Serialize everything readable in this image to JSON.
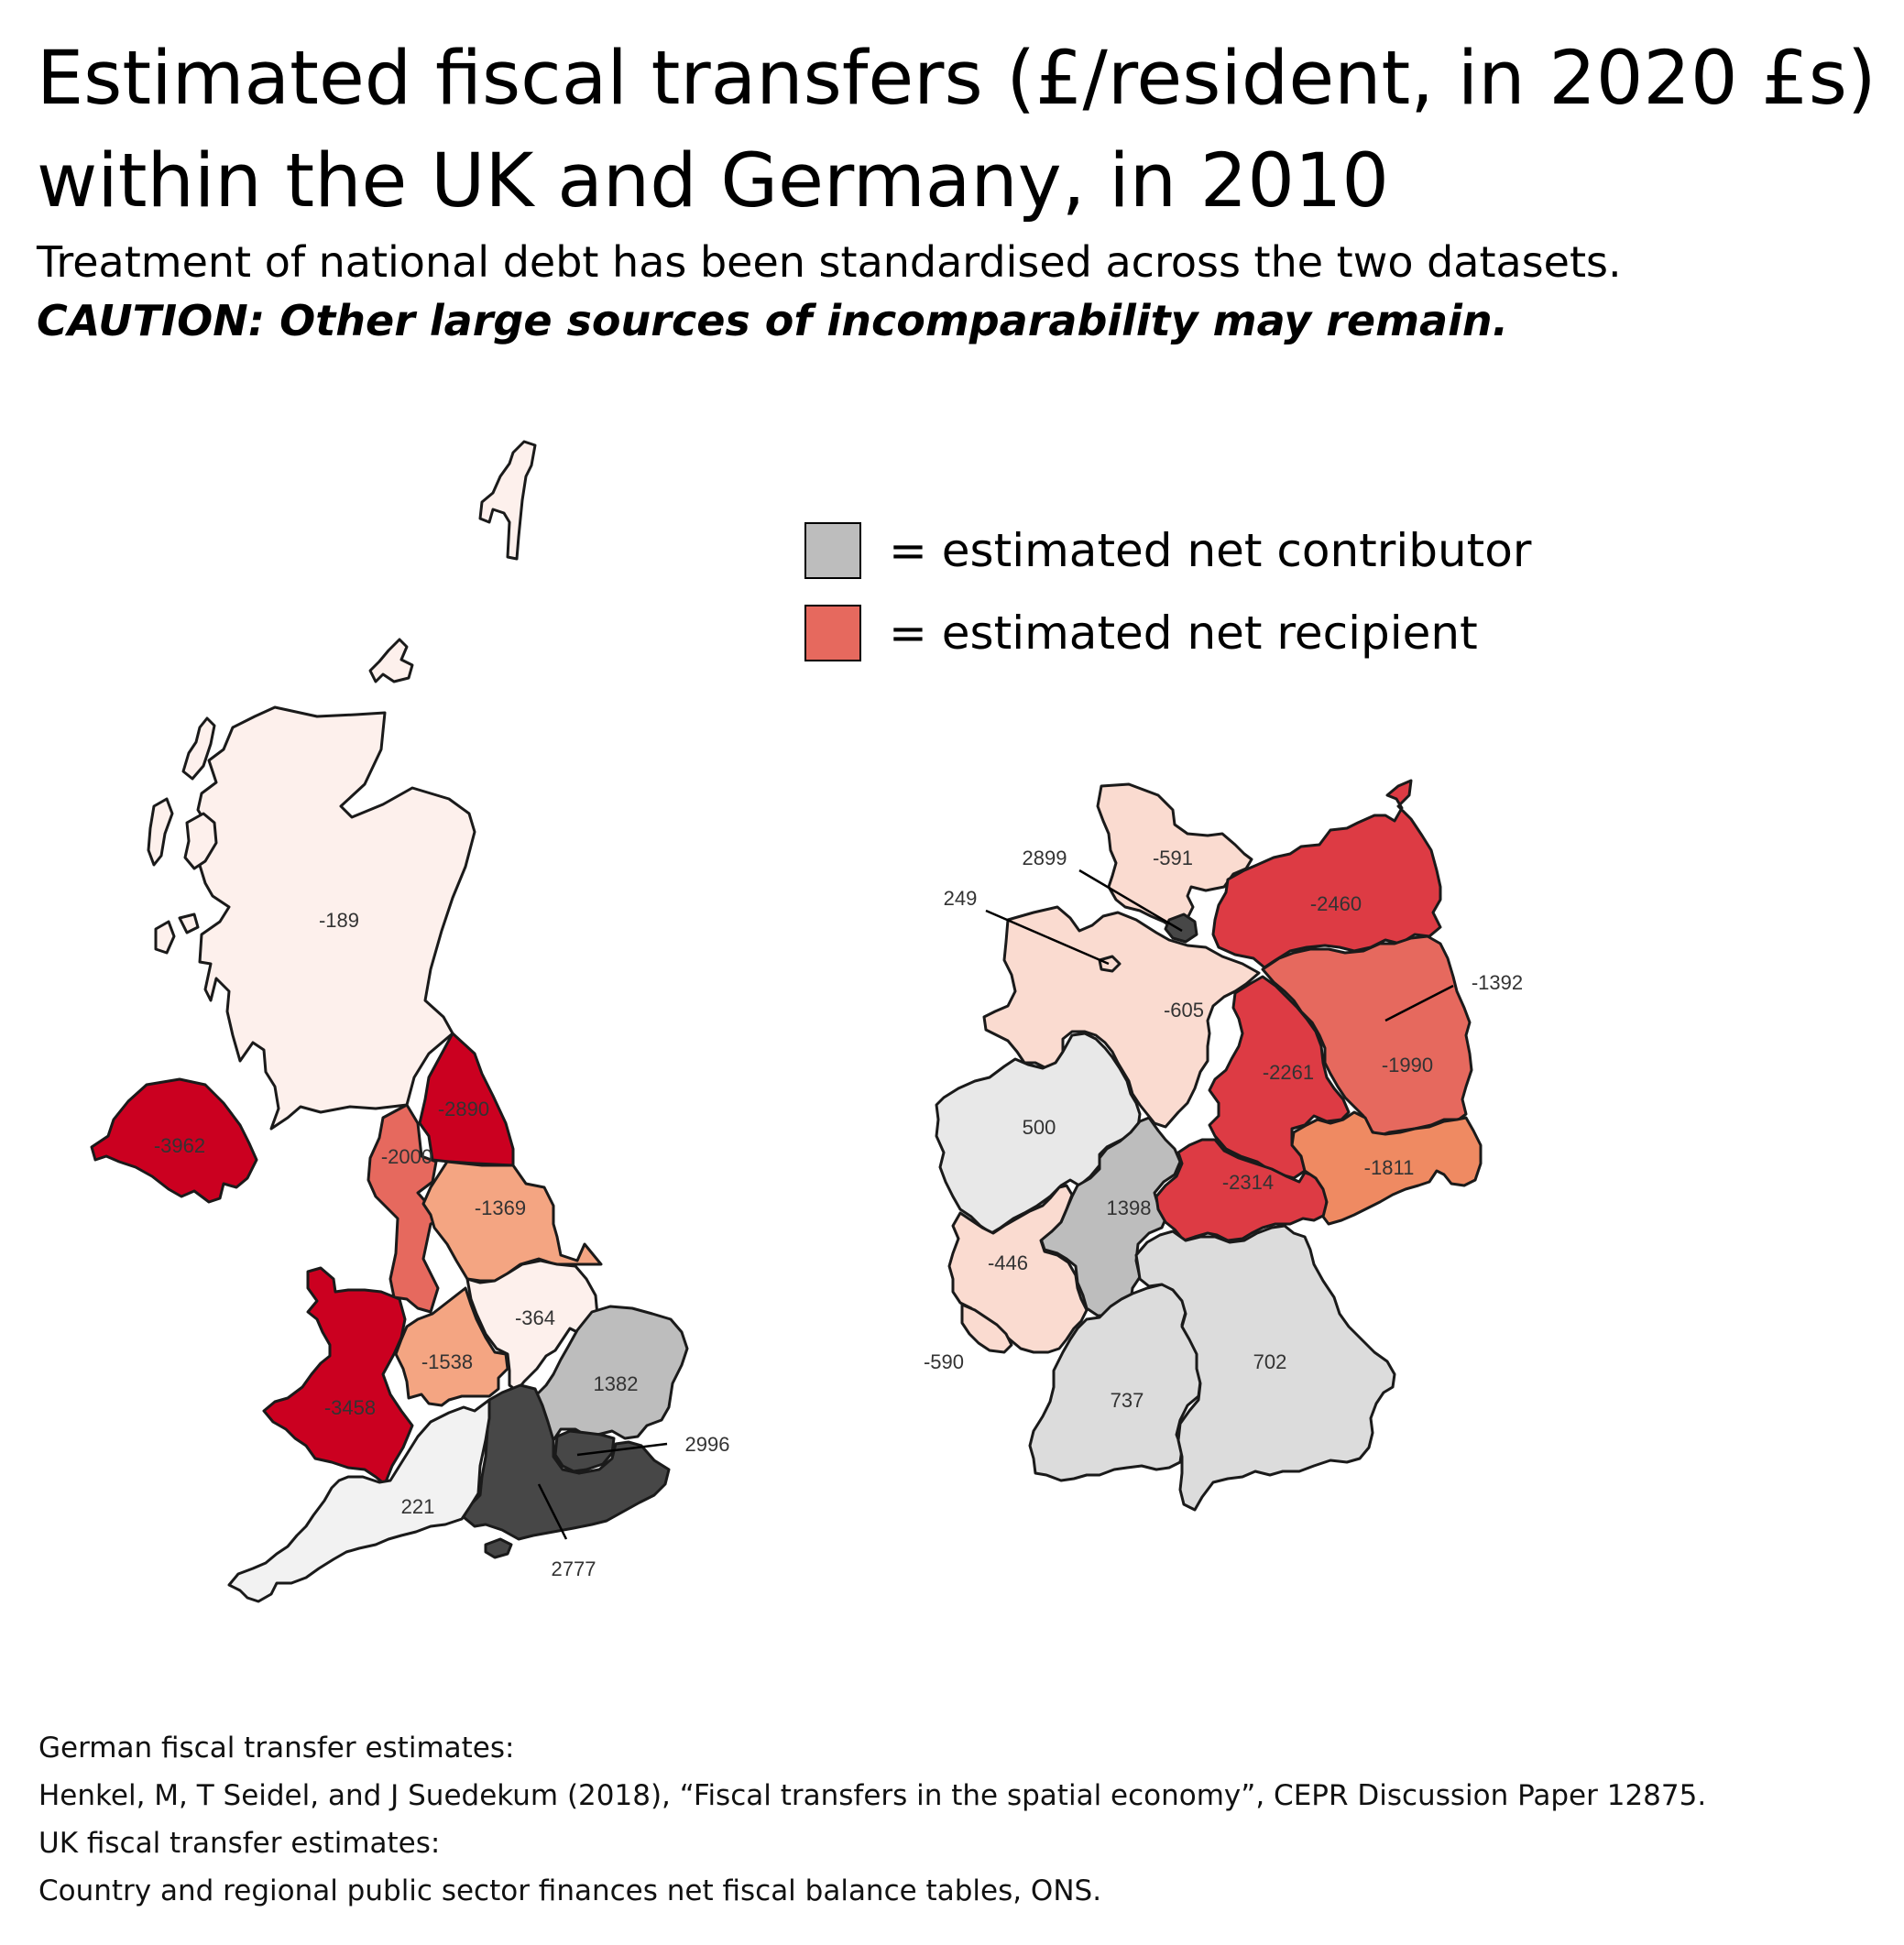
{
  "title": "Estimated fiscal transfers (£/resident, in 2020 £s) within the UK and Germany, in 2010",
  "subtitle": "Treatment of national debt has been standardised across the two datasets.",
  "caution": "CAUTION: Other large sources of incomparability may remain.",
  "legend": [
    {
      "label": "= estimated net contributor",
      "color": "#bdbdbd"
    },
    {
      "label": "= estimated net recipient",
      "color": "#e6695e"
    }
  ],
  "colors": {
    "dark_contributor": "#474747",
    "mid_contributor": "#bdbdbd",
    "light_contributor": "#e0e0e0",
    "palest_contributor": "#f2f2f2",
    "deep_recipient": "#cb0020",
    "strong_recipient": "#dd3b44",
    "mid_recipient": "#e6695e",
    "light_recipient": "#f4a582",
    "pale_recipient": "#fadbd0",
    "palest_recipient": "#fdf0ec"
  },
  "uk_regions": [
    {
      "region": "Scotland",
      "value": "-189"
    },
    {
      "region": "Northern Ireland",
      "value": "-3962"
    },
    {
      "region": "North East",
      "value": "-2890"
    },
    {
      "region": "North West",
      "value": "-2000"
    },
    {
      "region": "Yorkshire and the Humber",
      "value": "-1369"
    },
    {
      "region": "Wales",
      "value": "-3458"
    },
    {
      "region": "West Midlands",
      "value": "-1538"
    },
    {
      "region": "East Midlands",
      "value": "-364"
    },
    {
      "region": "East of England",
      "value": "1382"
    },
    {
      "region": "London",
      "value": "2996"
    },
    {
      "region": "South East",
      "value": "2777"
    },
    {
      "region": "South West",
      "value": "221"
    }
  ],
  "de_regions": [
    {
      "region": "Schleswig-Holstein",
      "value": "-591"
    },
    {
      "region": "Hamburg",
      "value": "2899"
    },
    {
      "region": "Bremen",
      "value": "249"
    },
    {
      "region": "Mecklenburg-Vorpommern",
      "value": "-2460"
    },
    {
      "region": "Berlin",
      "value": "-1392"
    },
    {
      "region": "Niedersachsen",
      "value": "-605"
    },
    {
      "region": "Brandenburg",
      "value": "-1990"
    },
    {
      "region": "Sachsen-Anhalt",
      "value": "-2261"
    },
    {
      "region": "Nordrhein-Westfalen",
      "value": "500"
    },
    {
      "region": "Hessen",
      "value": "1398"
    },
    {
      "region": "Thüringen",
      "value": "-2314"
    },
    {
      "region": "Sachsen",
      "value": "-1811"
    },
    {
      "region": "Rheinland-Pfalz",
      "value": "-446"
    },
    {
      "region": "Saarland",
      "value": "-590"
    },
    {
      "region": "Baden-Württemberg",
      "value": "737"
    },
    {
      "region": "Bayern",
      "value": "702"
    }
  ],
  "sources": {
    "de_heading": "German fiscal transfer estimates:",
    "de_citation": "Henkel, M, T Seidel, and J Suedekum (2018), “Fiscal transfers in the spatial economy”, CEPR Discussion Paper 12875.",
    "uk_heading": "UK fiscal transfer estimates:",
    "uk_citation": "Country and regional public sector finances net fiscal balance tables, ONS."
  }
}
